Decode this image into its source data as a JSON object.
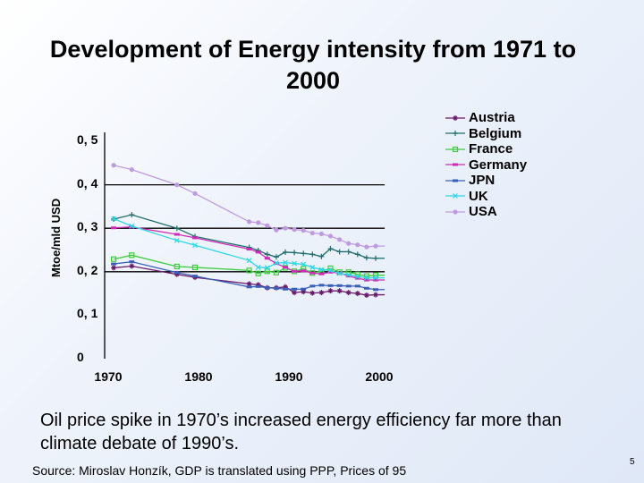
{
  "chart_data": {
    "type": "line",
    "title": "Development of Energy intensity from 1971 to 2000",
    "ylabel": "Mtoe/mld USD",
    "xlabel": "",
    "ylim": [
      0,
      0.5
    ],
    "xlim": [
      1970,
      2001
    ],
    "x_ticks": [
      "1970",
      "1980",
      "1990",
      "2000"
    ],
    "y_ticks": [
      "0",
      "0, 1",
      "0, 2",
      "0, 3",
      "0, 4",
      "0, 5"
    ],
    "grid": "horizontal",
    "legend_position": "top-right",
    "x": [
      1971,
      1973,
      1978,
      1980,
      1986,
      1987,
      1988,
      1989,
      1990,
      1991,
      1992,
      1993,
      1994,
      1995,
      1996,
      1997,
      1998,
      1999,
      2000
    ],
    "series": [
      {
        "name": "Austria",
        "color": "#6a1a6a",
        "marker": "star",
        "values": [
          0.209,
          0.213,
          0.194,
          0.187,
          0.172,
          0.17,
          0.163,
          0.163,
          0.165,
          0.152,
          0.154,
          0.151,
          0.152,
          0.156,
          0.156,
          0.152,
          0.15,
          0.146,
          0.147
        ]
      },
      {
        "name": "Belgium",
        "color": "#1f6b6b",
        "marker": "plus",
        "values": [
          0.321,
          0.331,
          0.3,
          0.281,
          0.256,
          0.249,
          0.24,
          0.234,
          0.245,
          0.244,
          0.242,
          0.24,
          0.235,
          0.253,
          0.246,
          0.246,
          0.24,
          0.232,
          0.231
        ]
      },
      {
        "name": "France",
        "color": "#3ecb3e",
        "marker": "square",
        "values": [
          0.229,
          0.238,
          0.212,
          0.21,
          0.203,
          0.196,
          0.201,
          0.198,
          0.209,
          0.201,
          0.207,
          0.197,
          0.201,
          0.208,
          0.199,
          0.199,
          0.194,
          0.19,
          0.192
        ]
      },
      {
        "name": "Germany",
        "color": "#d02ab8",
        "marker": "bar",
        "values": [
          0.301,
          0.303,
          0.286,
          0.278,
          0.252,
          0.245,
          0.231,
          0.219,
          0.21,
          0.201,
          0.202,
          0.197,
          0.195,
          0.199,
          0.197,
          0.19,
          0.185,
          0.181,
          0.181
        ]
      },
      {
        "name": "JPN",
        "color": "#3a5fb8",
        "marker": "bar",
        "values": [
          0.218,
          0.223,
          0.198,
          0.19,
          0.165,
          0.166,
          0.163,
          0.162,
          0.16,
          0.16,
          0.16,
          0.167,
          0.169,
          0.168,
          0.168,
          0.167,
          0.167,
          0.162,
          0.159
        ]
      },
      {
        "name": "UK",
        "color": "#2fd6e6",
        "marker": "x",
        "values": [
          0.322,
          0.305,
          0.272,
          0.261,
          0.226,
          0.21,
          0.209,
          0.22,
          0.221,
          0.219,
          0.217,
          0.21,
          0.205,
          0.203,
          0.196,
          0.193,
          0.189,
          0.186,
          0.186
        ]
      },
      {
        "name": "USA",
        "color": "#c09ae0",
        "marker": "circle",
        "values": [
          0.445,
          0.435,
          0.4,
          0.38,
          0.315,
          0.313,
          0.306,
          0.296,
          0.3,
          0.297,
          0.295,
          0.289,
          0.287,
          0.282,
          0.274,
          0.265,
          0.262,
          0.257,
          0.259
        ]
      }
    ]
  },
  "caption": "Oil price spike in 1970’s increased energy efficiency far more than climate debate of 1990’s.",
  "source": "Source: Miroslav Honzík,  GDP is translated using PPP, Prices of 95",
  "page_number": "5"
}
